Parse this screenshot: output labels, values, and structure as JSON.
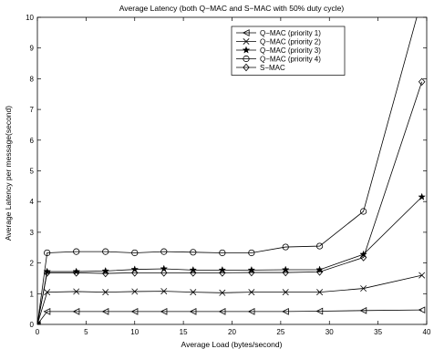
{
  "chart_data": {
    "type": "line",
    "title": "Average Latency (both Q−MAC and S−MAC with 50% duty cycle)",
    "xlabel": "Average Load (bytes/second)",
    "ylabel": "Average Latency per message(second)",
    "xlim": [
      0,
      40
    ],
    "ylim": [
      0,
      10
    ],
    "xticks": [
      0,
      5,
      10,
      15,
      20,
      25,
      30,
      35,
      40
    ],
    "yticks": [
      0,
      1,
      2,
      3,
      4,
      5,
      6,
      7,
      8,
      9,
      10
    ],
    "grid": false,
    "legend_position": "top-right",
    "series": [
      {
        "name": "Q−MAC (priority 1)",
        "marker": "triangle-left",
        "x": [
          0,
          1,
          4,
          7,
          10,
          13,
          16,
          19,
          22,
          25.5,
          29,
          33.5,
          39.5
        ],
        "y": [
          0,
          0.42,
          0.42,
          0.42,
          0.42,
          0.42,
          0.42,
          0.42,
          0.42,
          0.42,
          0.43,
          0.45,
          0.47
        ]
      },
      {
        "name": "Q−MAC (priority 2)",
        "marker": "x",
        "x": [
          0,
          1,
          4,
          7,
          10,
          13,
          16,
          19,
          22,
          25.5,
          29,
          33.5,
          39.5
        ],
        "y": [
          0,
          1.05,
          1.07,
          1.05,
          1.07,
          1.08,
          1.05,
          1.03,
          1.05,
          1.05,
          1.05,
          1.17,
          1.6
        ]
      },
      {
        "name": "Q−MAC (priority 3)",
        "marker": "star",
        "x": [
          0,
          1,
          4,
          7,
          10,
          13,
          16,
          19,
          22,
          25.5,
          29,
          33.5,
          39.5
        ],
        "y": [
          0,
          1.72,
          1.72,
          1.74,
          1.79,
          1.81,
          1.77,
          1.77,
          1.77,
          1.78,
          1.78,
          2.28,
          4.15
        ]
      },
      {
        "name": "Q−MAC (priority 4)",
        "marker": "circle",
        "x": [
          0,
          1,
          4,
          7,
          10,
          13,
          16,
          19,
          22,
          25.5,
          29,
          33.5,
          39.5
        ],
        "y": [
          0,
          2.33,
          2.37,
          2.37,
          2.33,
          2.37,
          2.35,
          2.33,
          2.33,
          2.52,
          2.55,
          3.68,
          10.6
        ]
      },
      {
        "name": "S−MAC",
        "marker": "diamond",
        "x": [
          0,
          1,
          4,
          7,
          10,
          13,
          16,
          19,
          22,
          25.5,
          29,
          33.5,
          39.5
        ],
        "y": [
          0,
          1.68,
          1.68,
          1.66,
          1.68,
          1.68,
          1.68,
          1.68,
          1.69,
          1.69,
          1.71,
          2.18,
          7.9
        ]
      }
    ]
  }
}
